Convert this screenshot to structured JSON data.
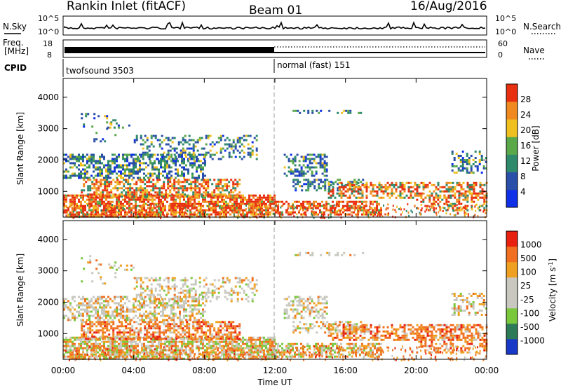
{
  "header": {
    "station": "Rankin Inlet (fitACF)",
    "beam": "Beam 01",
    "date": "16/Aug/2016"
  },
  "status_panels": {
    "nsky_label": "N.Sky",
    "nsearch_label": "N.Search",
    "nsky_ticks": [
      "10^5",
      "10^0"
    ],
    "nsearch_ticks": [
      "10^5",
      "10^0"
    ],
    "freq_label": "Freq.",
    "freq_unit": "[MHz]",
    "freq_ticks": [
      "18",
      "8"
    ],
    "nave_label": "Nave",
    "nave_ticks": [
      "60",
      "0"
    ],
    "cpid_label": "CPID",
    "cpid_segments": [
      {
        "name": "twofsound 3503",
        "start": 0,
        "end": 12
      },
      {
        "name": "normal (fast) 151",
        "start": 12,
        "end": 24
      }
    ]
  },
  "chart_data": [
    {
      "type": "heatmap",
      "title": "",
      "ylabel": "Slant Range [km]",
      "ylim": [
        180,
        4600
      ],
      "yticks": [
        1000,
        2000,
        3000,
        4000
      ],
      "colorbar": {
        "label": "Power [dB]",
        "ticks": [
          "4",
          "8",
          "12",
          "16",
          "20",
          "24",
          "28"
        ],
        "colors": [
          "#1030e8",
          "#2a4fa8",
          "#2e8a6a",
          "#5aa84a",
          "#f0c020",
          "#f08a20",
          "#e83010"
        ]
      }
    },
    {
      "type": "heatmap",
      "title": "",
      "xlabel": "Time UT",
      "ylabel": "Slant Range [km]",
      "ylim": [
        180,
        4600
      ],
      "yticks": [
        1000,
        2000,
        3000,
        4000
      ],
      "xticks": [
        "00:00",
        "04:00",
        "08:00",
        "12:00",
        "16:00",
        "20:00",
        "00:00"
      ],
      "xlim_hours": [
        0,
        24
      ],
      "colorbar": {
        "label": "Velocity [m s",
        "label_sup": "-1",
        "label_close": "]",
        "ticks": [
          "1000",
          "500",
          "100",
          "25",
          "-25",
          "-100",
          "-500",
          "-1000"
        ],
        "colors": [
          "#1838c8",
          "#2c7a58",
          "#7ac83c",
          "#c8c8c0",
          "#c8c8c0",
          "#f0a020",
          "#f07020",
          "#e82010"
        ]
      }
    }
  ]
}
